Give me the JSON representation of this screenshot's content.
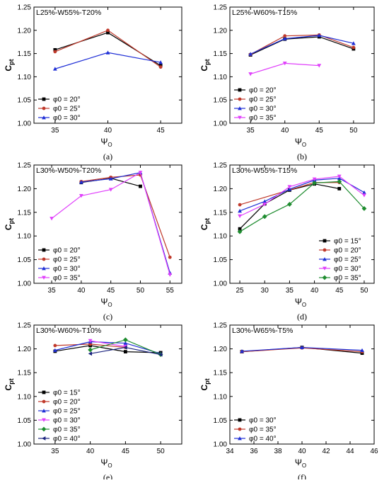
{
  "chart_data": [
    {
      "type": "line",
      "title": "L25%-W55%-T20%",
      "panel_label": "(a)",
      "xlabel": "Ψ",
      "xlabel_sub": "O",
      "ylabel": "C",
      "ylabel_sub": "pt",
      "xlim": [
        33,
        47
      ],
      "ylim": [
        1.0,
        1.25
      ],
      "xticks": [
        "35",
        "40",
        "45"
      ],
      "yticks": [
        "1.00",
        "1.05",
        "1.10",
        "1.15",
        "1.20",
        "1.25"
      ],
      "legend_position": "lower-left",
      "series": [
        {
          "name": "φ0 = 20°",
          "color": "#000000",
          "marker": "square",
          "x": [
            35,
            40,
            45
          ],
          "y": [
            1.158,
            1.195,
            1.124
          ]
        },
        {
          "name": "φ0 = 25°",
          "color": "#c0392b",
          "marker": "circle",
          "x": [
            35,
            40,
            45
          ],
          "y": [
            1.154,
            1.2,
            1.121
          ]
        },
        {
          "name": "φ0 = 30°",
          "color": "#1f2fd6",
          "marker": "triangle-up",
          "x": [
            35,
            40,
            45
          ],
          "y": [
            1.117,
            1.152,
            1.131
          ]
        }
      ]
    },
    {
      "type": "line",
      "title": "L25%-W60%-T15%",
      "panel_label": "(b)",
      "xlabel": "Ψ",
      "xlabel_sub": "O",
      "ylabel": "C",
      "ylabel_sub": "pt",
      "xlim": [
        32,
        53
      ],
      "ylim": [
        1.0,
        1.25
      ],
      "xticks": [
        "35",
        "40",
        "45",
        "50"
      ],
      "yticks": [
        "1.00",
        "1.05",
        "1.10",
        "1.15",
        "1.20",
        "1.25"
      ],
      "legend_position": "lower-left",
      "series": [
        {
          "name": "φ0 = 20°",
          "color": "#000000",
          "marker": "square",
          "x": [
            35,
            40,
            45,
            50
          ],
          "y": [
            1.147,
            1.181,
            1.186,
            1.16
          ]
        },
        {
          "name": "φ0 = 25°",
          "color": "#c0392b",
          "marker": "circle",
          "x": [
            35,
            40,
            45,
            50
          ],
          "y": [
            1.148,
            1.188,
            1.19,
            1.163
          ]
        },
        {
          "name": "φ0 = 30°",
          "color": "#1f2fd6",
          "marker": "triangle-up",
          "x": [
            35,
            40,
            45,
            50
          ],
          "y": [
            1.149,
            1.182,
            1.189,
            1.172
          ]
        },
        {
          "name": "φ0 = 35°",
          "color": "#e040fb",
          "marker": "triangle-down",
          "x": [
            35,
            40,
            45
          ],
          "y": [
            1.106,
            1.129,
            1.124
          ]
        }
      ]
    },
    {
      "type": "line",
      "title": "L30%-W50%-T20%",
      "panel_label": "(c)",
      "xlabel": "Ψ",
      "xlabel_sub": "O",
      "ylabel": "C",
      "ylabel_sub": "pt",
      "xlim": [
        32,
        57
      ],
      "ylim": [
        1.0,
        1.25
      ],
      "xticks": [
        "35",
        "40",
        "45",
        "50",
        "55"
      ],
      "yticks": [
        "1.00",
        "1.05",
        "1.10",
        "1.15",
        "1.20",
        "1.25"
      ],
      "legend_position": "lower-left",
      "series": [
        {
          "name": "φ0 = 20°",
          "color": "#000000",
          "marker": "square",
          "x": [
            40,
            45,
            50
          ],
          "y": [
            1.213,
            1.222,
            1.205
          ]
        },
        {
          "name": "φ0 = 25°",
          "color": "#c0392b",
          "marker": "circle",
          "x": [
            40,
            45,
            50,
            55
          ],
          "y": [
            1.215,
            1.224,
            1.229,
            1.055
          ]
        },
        {
          "name": "φ0 = 30°",
          "color": "#1f2fd6",
          "marker": "triangle-up",
          "x": [
            40,
            45,
            50,
            55
          ],
          "y": [
            1.214,
            1.221,
            1.234,
            1.022
          ]
        },
        {
          "name": "φ0 = 35°",
          "color": "#e040fb",
          "marker": "triangle-down",
          "x": [
            35,
            40,
            45,
            50,
            55
          ],
          "y": [
            1.137,
            1.185,
            1.198,
            1.234,
            1.018
          ]
        }
      ]
    },
    {
      "type": "line",
      "title": "L30%-W55%-T15%",
      "panel_label": "(d)",
      "xlabel": "Ψ",
      "xlabel_sub": "O",
      "ylabel": "C",
      "ylabel_sub": "pt",
      "xlim": [
        23,
        52
      ],
      "ylim": [
        1.0,
        1.25
      ],
      "xticks": [
        "25",
        "30",
        "35",
        "40",
        "45",
        "50"
      ],
      "yticks": [
        "1.00",
        "1.05",
        "1.10",
        "1.15",
        "1.20",
        "1.25"
      ],
      "legend_position": "lower-right",
      "series": [
        {
          "name": "φ0 = 15°",
          "color": "#000000",
          "marker": "square",
          "x": [
            25,
            30,
            35,
            40,
            45
          ],
          "y": [
            1.115,
            1.168,
            1.197,
            1.21,
            1.2
          ]
        },
        {
          "name": "φ0 = 20°",
          "color": "#c0392b",
          "marker": "circle",
          "x": [
            25,
            40,
            45
          ],
          "y": [
            1.166,
            1.213,
            1.213
          ]
        },
        {
          "name": "φ0 = 25°",
          "color": "#1f2fd6",
          "marker": "triangle-up",
          "x": [
            25,
            30,
            35,
            40,
            45,
            50
          ],
          "y": [
            1.153,
            1.173,
            1.199,
            1.218,
            1.222,
            1.192
          ]
        },
        {
          "name": "φ0 = 30°",
          "color": "#e040fb",
          "marker": "triangle-down",
          "x": [
            25,
            30,
            35,
            40,
            45,
            50
          ],
          "y": [
            1.142,
            1.167,
            1.204,
            1.22,
            1.226,
            1.186
          ]
        },
        {
          "name": "φ0 = 35°",
          "color": "#1e8c2f",
          "marker": "diamond",
          "x": [
            25,
            30,
            35,
            40,
            45,
            50
          ],
          "y": [
            1.109,
            1.141,
            1.167,
            1.212,
            1.215,
            1.158
          ]
        }
      ]
    },
    {
      "type": "line",
      "title": "L30%-W60%-T10%",
      "panel_label": "(e)",
      "xlabel": "Ψ",
      "xlabel_sub": "O",
      "ylabel": "C",
      "ylabel_sub": "pt",
      "xlim": [
        32,
        53
      ],
      "ylim": [
        1.0,
        1.25
      ],
      "xticks": [
        "35",
        "40",
        "45",
        "50"
      ],
      "yticks": [
        "1.00",
        "1.05",
        "1.10",
        "1.15",
        "1.20",
        "1.25"
      ],
      "legend_position": "lower-left",
      "series": [
        {
          "name": "φ0 = 15°",
          "color": "#000000",
          "marker": "square",
          "x": [
            35,
            40,
            45,
            50
          ],
          "y": [
            1.195,
            1.207,
            1.194,
            1.192
          ]
        },
        {
          "name": "φ0 = 20°",
          "color": "#c0392b",
          "marker": "circle",
          "x": [
            35,
            40,
            45
          ],
          "y": [
            1.207,
            1.21,
            1.203
          ]
        },
        {
          "name": "φ0 = 25°",
          "color": "#1f2fd6",
          "marker": "triangle-up",
          "x": [
            35,
            40,
            45,
            50
          ],
          "y": [
            1.197,
            1.215,
            1.212,
            1.19
          ]
        },
        {
          "name": "φ0 = 30°",
          "color": "#e040fb",
          "marker": "triangle-down",
          "x": [
            40,
            45
          ],
          "y": [
            1.217,
            1.205
          ]
        },
        {
          "name": "φ0 = 35°",
          "color": "#1e8c2f",
          "marker": "diamond",
          "x": [
            40,
            45,
            50
          ],
          "y": [
            1.198,
            1.219,
            1.188
          ]
        },
        {
          "name": "φ0 = 40°",
          "color": "#1a237e",
          "marker": "triangle-left",
          "x": [
            40,
            45,
            50
          ],
          "y": [
            1.19,
            1.203,
            1.188
          ]
        }
      ]
    },
    {
      "type": "line",
      "title": "L30%-W65%-T5%",
      "panel_label": "(f)",
      "xlabel": "Ψ",
      "xlabel_sub": "O",
      "ylabel": "C",
      "ylabel_sub": "pt",
      "xlim": [
        34,
        46
      ],
      "ylim": [
        1.0,
        1.25
      ],
      "xticks": [
        "34",
        "36",
        "38",
        "40",
        "42",
        "44",
        "46"
      ],
      "yticks": [
        "1.00",
        "1.05",
        "1.10",
        "1.15",
        "1.20",
        "1.25"
      ],
      "legend_position": "lower-left",
      "series": [
        {
          "name": "φ0 = 30°",
          "color": "#000000",
          "marker": "square",
          "x": [
            35,
            40,
            45
          ],
          "y": [
            1.194,
            1.203,
            1.191
          ]
        },
        {
          "name": "φ0 = 35°",
          "color": "#c0392b",
          "marker": "circle",
          "x": [
            35,
            40,
            45
          ],
          "y": [
            1.194,
            1.202,
            1.194
          ]
        },
        {
          "name": "φ0 = 40°",
          "color": "#1f2fd6",
          "marker": "triangle-up",
          "x": [
            35,
            40,
            45
          ],
          "y": [
            1.195,
            1.203,
            1.197
          ]
        }
      ]
    }
  ]
}
